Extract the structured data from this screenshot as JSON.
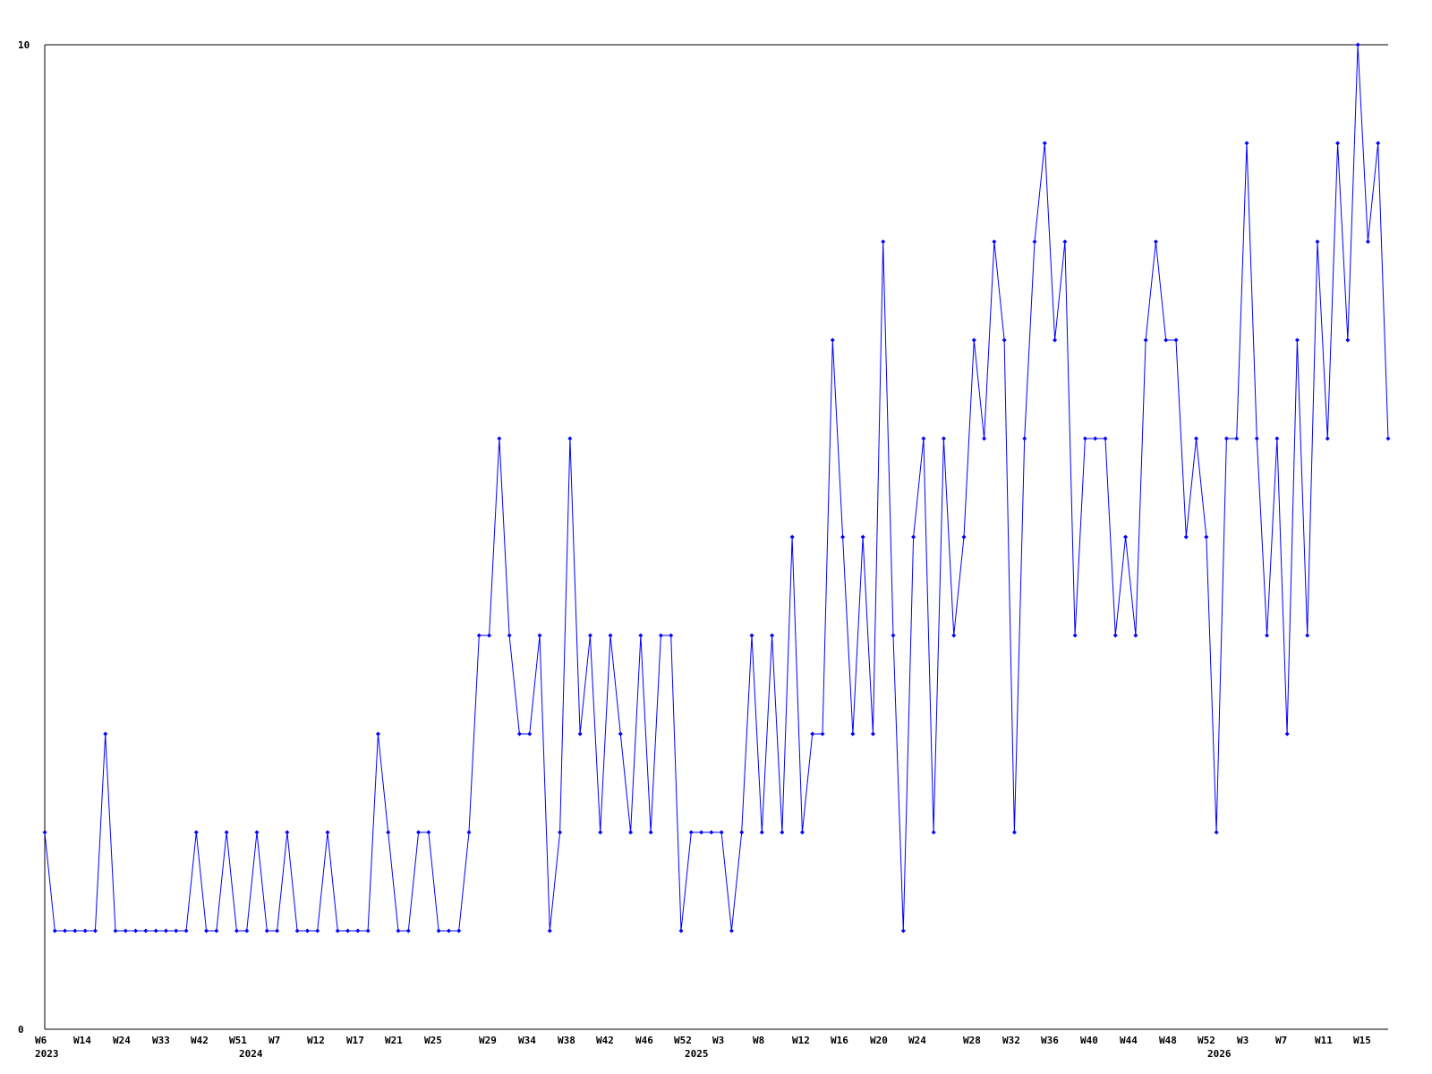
{
  "chart_data": {
    "type": "line",
    "title": "",
    "xlabel": "",
    "ylabel": "",
    "ylim": [
      0,
      10
    ],
    "y_tick_labels": [
      "0",
      "10"
    ],
    "grid": false,
    "legend": "none",
    "x_tick_labels": [
      "W6",
      "W14",
      "W24",
      "W33",
      "W42",
      "W51",
      "W7",
      "W12",
      "W17",
      "W21",
      "W25",
      "W29",
      "W34",
      "W38",
      "W42",
      "W46",
      "W52",
      "W3",
      "W8",
      "W12",
      "W16",
      "W20",
      "W24",
      "W28",
      "W32",
      "W36",
      "W40",
      "W44",
      "W48",
      "W52",
      "W3",
      "W7",
      "W11",
      "W15"
    ],
    "year_labels": [
      "2023",
      "2024",
      "2025",
      "2026"
    ],
    "series": [
      {
        "color": "#0000ff",
        "marker": "diamond",
        "values": [
          2,
          1,
          1,
          1,
          1,
          1,
          3,
          1,
          1,
          1,
          1,
          1,
          1,
          1,
          1,
          2,
          1,
          1,
          2,
          1,
          1,
          2,
          1,
          1,
          2,
          1,
          1,
          1,
          2,
          1,
          1,
          1,
          1,
          3,
          2,
          1,
          1,
          2,
          2,
          1,
          1,
          1,
          2,
          4,
          4,
          6,
          4,
          3,
          3,
          4,
          1,
          2,
          6,
          3,
          4,
          2,
          4,
          3,
          2,
          4,
          2,
          4,
          4,
          1,
          2,
          2,
          2,
          2,
          1,
          2,
          4,
          2,
          4,
          2,
          5,
          2,
          3,
          3,
          7,
          5,
          3,
          5,
          3,
          8,
          4,
          1,
          5,
          6,
          2,
          6,
          4,
          5,
          7,
          6,
          8,
          7,
          2,
          6,
          8,
          9,
          7,
          8,
          4,
          6,
          6,
          6,
          4,
          5,
          4,
          7,
          8,
          7,
          7,
          5,
          6,
          5,
          2,
          6,
          6,
          9,
          6,
          4,
          6,
          3,
          7,
          4,
          8,
          6,
          9,
          7,
          10,
          8,
          9,
          6
        ]
      }
    ]
  }
}
